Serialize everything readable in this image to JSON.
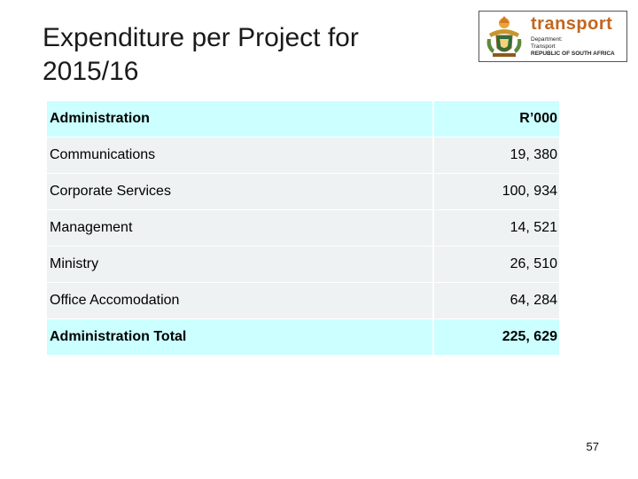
{
  "title_line1": "Expenditure per Project for",
  "title_line2": "2015/16",
  "logo": {
    "brand": "transport",
    "line1": "Department:",
    "line2": "Transport",
    "line3": "REPUBLIC OF SOUTH AFRICA"
  },
  "table": {
    "header": {
      "label": "Administration",
      "value": "R’000"
    },
    "rows": [
      {
        "label": "Communications",
        "value": "19, 380"
      },
      {
        "label": "Corporate Services",
        "value": "100, 934"
      },
      {
        "label": "Management",
        "value": "14, 521"
      },
      {
        "label": "Ministry",
        "value": "26, 510"
      },
      {
        "label": "Office Accomodation",
        "value": "64, 284"
      }
    ],
    "total": {
      "label": "Administration Total",
      "value": "225, 629"
    }
  },
  "page_number": "57"
}
